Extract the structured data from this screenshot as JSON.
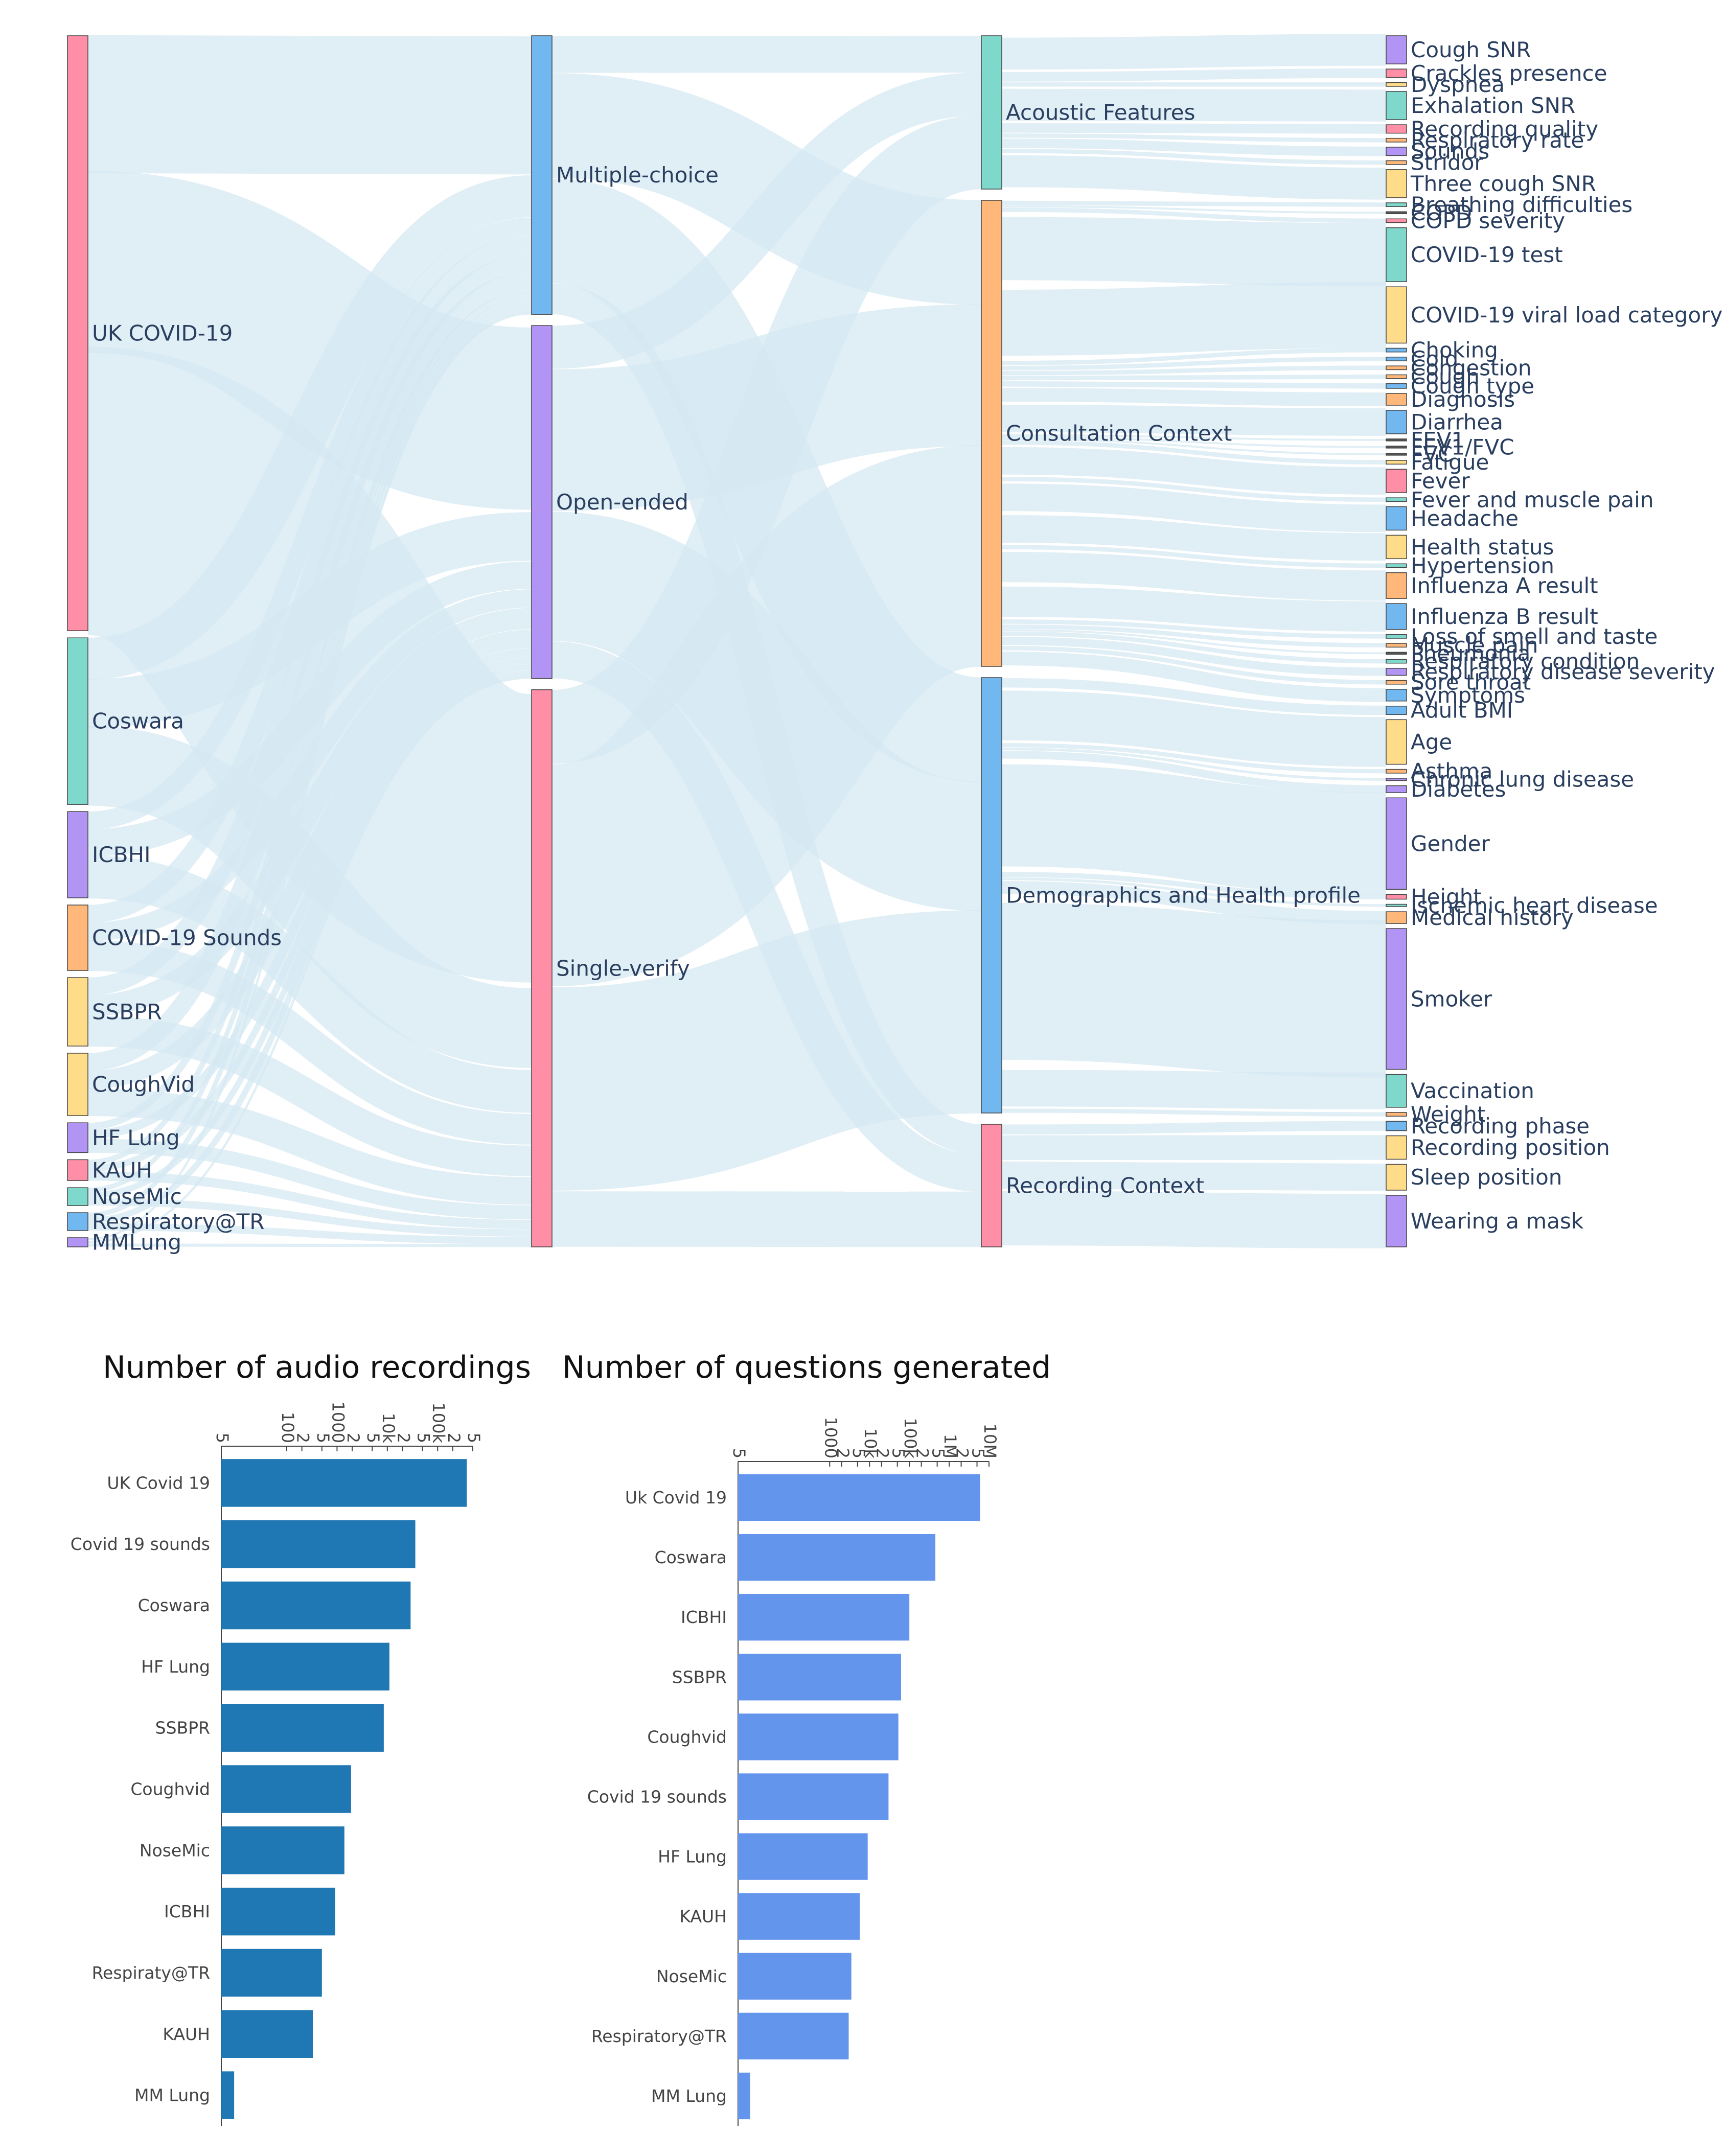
{
  "chart_data": [
    {
      "type": "sankey",
      "title": "",
      "columns": [
        {
          "name": "datasets",
          "nodes": [
            {
              "label": "UK COVID-19",
              "value": 1.0,
              "color": "#ff8fa6"
            },
            {
              "label": "Coswara",
              "value": 0.28,
              "color": "#7fd8cc"
            },
            {
              "label": "ICBHI",
              "value": 0.145,
              "color": "#b194f4"
            },
            {
              "label": "COVID-19 Sounds",
              "value": 0.11,
              "color": "#ffb87a"
            },
            {
              "label": "SSBPR",
              "value": 0.115,
              "color": "#ffdc8a"
            },
            {
              "label": "CoughVid",
              "value": 0.105,
              "color": "#ffdc8a"
            },
            {
              "label": "HF Lung",
              "value": 0.05,
              "color": "#b194f4"
            },
            {
              "label": "KAUH",
              "value": 0.035,
              "color": "#ff8fa6"
            },
            {
              "label": "NoseMic",
              "value": 0.03,
              "color": "#7fd8cc"
            },
            {
              "label": "Respiratory@TR",
              "value": 0.03,
              "color": "#72b8f0"
            },
            {
              "label": "MMLung",
              "value": 0.01,
              "color": "#b194f4"
            }
          ]
        },
        {
          "name": "question_types",
          "nodes": [
            {
              "label": "Multiple-choice",
              "value": 0.45,
              "color": "#72b8f0"
            },
            {
              "label": "Open-ended",
              "value": 0.57,
              "color": "#b194f4"
            },
            {
              "label": "Single-verify",
              "value": 0.9,
              "color": "#ff8fa6"
            }
          ]
        },
        {
          "name": "categories",
          "nodes": [
            {
              "label": "Acoustic Features",
              "value": 0.25,
              "color": "#7fd8cc"
            },
            {
              "label": "Consultation Context",
              "value": 0.76,
              "color": "#ffb87a"
            },
            {
              "label": "Demographics and Health profile",
              "value": 0.71,
              "color": "#72b8f0"
            },
            {
              "label": "Recording Context",
              "value": 0.2,
              "color": "#ff8fa6"
            }
          ]
        },
        {
          "name": "tasks",
          "nodes": [
            {
              "label": "Cough SNR",
              "value": 0.06,
              "color": "#b194f4"
            },
            {
              "label": "Crackles presence",
              "value": 0.018,
              "color": "#ff8fa6"
            },
            {
              "label": "Dyspnea",
              "value": 0.008,
              "color": "#ffdc8a"
            },
            {
              "label": "Exhalation SNR",
              "value": 0.06,
              "color": "#7fd8cc"
            },
            {
              "label": "Recording quality",
              "value": 0.018,
              "color": "#ff8fa6"
            },
            {
              "label": "Respiratory rate",
              "value": 0.008,
              "color": "#ffb87a"
            },
            {
              "label": "Sounds",
              "value": 0.018,
              "color": "#b194f4"
            },
            {
              "label": "Stridor",
              "value": 0.008,
              "color": "#ffb87a"
            },
            {
              "label": "Three cough SNR",
              "value": 0.06,
              "color": "#ffdc8a"
            },
            {
              "label": "Breathing difficulties",
              "value": 0.008,
              "color": "#7fd8cc"
            },
            {
              "label": "COPD",
              "value": 0.003,
              "color": "#555555"
            },
            {
              "label": "COPD severity",
              "value": 0.008,
              "color": "#ff8fa6"
            },
            {
              "label": "COVID-19 test",
              "value": 0.115,
              "color": "#7fd8cc"
            },
            {
              "label": "COVID-19 viral load category",
              "value": 0.12,
              "color": "#ffdc8a"
            },
            {
              "label": "Choking",
              "value": 0.008,
              "color": "#72b8f0"
            },
            {
              "label": "Cold",
              "value": 0.008,
              "color": "#72b8f0"
            },
            {
              "label": "Congestion",
              "value": 0.008,
              "color": "#ffb87a"
            },
            {
              "label": "Cough",
              "value": 0.008,
              "color": "#ffb87a"
            },
            {
              "label": "Cough type",
              "value": 0.01,
              "color": "#72b8f0"
            },
            {
              "label": "Diagnosis",
              "value": 0.025,
              "color": "#ffb87a"
            },
            {
              "label": "Diarrhea",
              "value": 0.05,
              "color": "#72b8f0"
            },
            {
              "label": "FEV1",
              "value": 0.003,
              "color": "#555555"
            },
            {
              "label": "FEV1/FVC",
              "value": 0.003,
              "color": "#555555"
            },
            {
              "label": "FVC",
              "value": 0.003,
              "color": "#555555"
            },
            {
              "label": "Fatigue",
              "value": 0.008,
              "color": "#ffdc8a"
            },
            {
              "label": "Fever",
              "value": 0.05,
              "color": "#ff8fa6"
            },
            {
              "label": "Fever and muscle pain",
              "value": 0.008,
              "color": "#7fd8cc"
            },
            {
              "label": "Headache",
              "value": 0.05,
              "color": "#72b8f0"
            },
            {
              "label": "Health status",
              "value": 0.05,
              "color": "#ffdc8a"
            },
            {
              "label": "Hypertension",
              "value": 0.008,
              "color": "#7fd8cc"
            },
            {
              "label": "Influenza A result",
              "value": 0.055,
              "color": "#ffb87a"
            },
            {
              "label": "Influenza B result",
              "value": 0.055,
              "color": "#72b8f0"
            },
            {
              "label": "Loss of smell and taste",
              "value": 0.008,
              "color": "#7fd8cc"
            },
            {
              "label": "Muscle pain",
              "value": 0.008,
              "color": "#ffb87a"
            },
            {
              "label": "Pneumonia",
              "value": 0.003,
              "color": "#555555"
            },
            {
              "label": "Respiratory condition",
              "value": 0.008,
              "color": "#7fd8cc"
            },
            {
              "label": "Respiratory disease severity",
              "value": 0.015,
              "color": "#b194f4"
            },
            {
              "label": "Sore throat",
              "value": 0.008,
              "color": "#ffb87a"
            },
            {
              "label": "Symptoms",
              "value": 0.025,
              "color": "#72b8f0"
            },
            {
              "label": "Adult BMI",
              "value": 0.018,
              "color": "#72b8f0"
            },
            {
              "label": "Age",
              "value": 0.095,
              "color": "#ffdc8a"
            },
            {
              "label": "Asthma",
              "value": 0.008,
              "color": "#ffb87a"
            },
            {
              "label": "Chronic lung disease",
              "value": 0.005,
              "color": "#b194f4"
            },
            {
              "label": "Diabetes",
              "value": 0.015,
              "color": "#b194f4"
            },
            {
              "label": "Gender",
              "value": 0.195,
              "color": "#b194f4"
            },
            {
              "label": "Height",
              "value": 0.01,
              "color": "#ff8fa6"
            },
            {
              "label": "Ischemic heart disease",
              "value": 0.005,
              "color": "#7fd8cc"
            },
            {
              "label": "Medical history",
              "value": 0.025,
              "color": "#ffb87a"
            },
            {
              "label": "Smoker",
              "value": 0.3,
              "color": "#b194f4"
            },
            {
              "label": "Vaccination",
              "value": 0.07,
              "color": "#7fd8cc"
            },
            {
              "label": "Weight",
              "value": 0.008,
              "color": "#ffb87a"
            },
            {
              "label": "Recording phase",
              "value": 0.02,
              "color": "#72b8f0"
            },
            {
              "label": "Recording position",
              "value": 0.05,
              "color": "#ffdc8a"
            },
            {
              "label": "Sleep position",
              "value": 0.055,
              "color": "#ffdc8a"
            },
            {
              "label": "Wearing a mask",
              "value": 0.11,
              "color": "#b194f4"
            }
          ]
        }
      ],
      "links_dataset_to_type": [
        [
          "UK COVID-19",
          "Multiple-choice",
          0.23
        ],
        [
          "UK COVID-19",
          "Open-ended",
          0.3
        ],
        [
          "UK COVID-19",
          "Single-verify",
          0.47
        ],
        [
          "Coswara",
          "Multiple-choice",
          0.07
        ],
        [
          "Coswara",
          "Open-ended",
          0.08
        ],
        [
          "Coswara",
          "Single-verify",
          0.13
        ],
        [
          "ICBHI",
          "Multiple-choice",
          0.03
        ],
        [
          "ICBHI",
          "Open-ended",
          0.045
        ],
        [
          "ICBHI",
          "Single-verify",
          0.07
        ],
        [
          "COVID-19 Sounds",
          "Multiple-choice",
          0.03
        ],
        [
          "COVID-19 Sounds",
          "Open-ended",
          0.03
        ],
        [
          "COVID-19 Sounds",
          "Single-verify",
          0.05
        ],
        [
          "SSBPR",
          "Multiple-choice",
          0.03
        ],
        [
          "SSBPR",
          "Open-ended",
          0.035
        ],
        [
          "SSBPR",
          "Single-verify",
          0.05
        ],
        [
          "CoughVid",
          "Multiple-choice",
          0.03
        ],
        [
          "CoughVid",
          "Open-ended",
          0.03
        ],
        [
          "CoughVid",
          "Single-verify",
          0.045
        ],
        [
          "HF Lung",
          "Multiple-choice",
          0.012
        ],
        [
          "HF Lung",
          "Open-ended",
          0.015
        ],
        [
          "HF Lung",
          "Single-verify",
          0.023
        ],
        [
          "KAUH",
          "Multiple-choice",
          0.009
        ],
        [
          "KAUH",
          "Open-ended",
          0.011
        ],
        [
          "KAUH",
          "Single-verify",
          0.015
        ],
        [
          "NoseMic",
          "Multiple-choice",
          0.008
        ],
        [
          "NoseMic",
          "Open-ended",
          0.01
        ],
        [
          "NoseMic",
          "Single-verify",
          0.012
        ],
        [
          "Respiratory@TR",
          "Multiple-choice",
          0.008
        ],
        [
          "Respiratory@TR",
          "Open-ended",
          0.01
        ],
        [
          "Respiratory@TR",
          "Single-verify",
          0.012
        ],
        [
          "MMLung",
          "Multiple-choice",
          0.003
        ],
        [
          "MMLung",
          "Open-ended",
          0.003
        ],
        [
          "MMLung",
          "Single-verify",
          0.004
        ]
      ],
      "links_type_to_category": [
        [
          "Multiple-choice",
          "Acoustic Features",
          0.06
        ],
        [
          "Multiple-choice",
          "Consultation Context",
          0.17
        ],
        [
          "Multiple-choice",
          "Demographics and Health profile",
          0.17
        ],
        [
          "Multiple-choice",
          "Recording Context",
          0.05
        ],
        [
          "Open-ended",
          "Acoustic Features",
          0.07
        ],
        [
          "Open-ended",
          "Consultation Context",
          0.23
        ],
        [
          "Open-ended",
          "Demographics and Health profile",
          0.21
        ],
        [
          "Open-ended",
          "Recording Context",
          0.06
        ],
        [
          "Single-verify",
          "Acoustic Features",
          0.12
        ],
        [
          "Single-verify",
          "Consultation Context",
          0.36
        ],
        [
          "Single-verify",
          "Demographics and Health profile",
          0.33
        ],
        [
          "Single-verify",
          "Recording Context",
          0.09
        ]
      ],
      "task_groups": {
        "Acoustic Features": [
          "Cough SNR",
          "Crackles presence",
          "Dyspnea",
          "Exhalation SNR",
          "Recording quality",
          "Respiratory rate",
          "Sounds",
          "Stridor",
          "Three cough SNR"
        ],
        "Consultation Context": [
          "Breathing difficulties",
          "COPD",
          "COPD severity",
          "COVID-19 test",
          "COVID-19 viral load category",
          "Choking",
          "Cold",
          "Congestion",
          "Cough",
          "Cough type",
          "Diagnosis",
          "Diarrhea",
          "FEV1",
          "FEV1/FVC",
          "FVC",
          "Fatigue",
          "Fever",
          "Fever and muscle pain",
          "Headache",
          "Health status",
          "Hypertension",
          "Influenza A result",
          "Influenza B result",
          "Loss of smell and taste",
          "Muscle pain",
          "Pneumonia",
          "Respiratory condition",
          "Respiratory disease severity",
          "Sore throat",
          "Symptoms"
        ],
        "Demographics and Health profile": [
          "Adult BMI",
          "Age",
          "Asthma",
          "Chronic lung disease",
          "Diabetes",
          "Gender",
          "Height",
          "Ischemic heart disease",
          "Medical history",
          "Smoker",
          "Vaccination",
          "Weight"
        ],
        "Recording Context": [
          "Recording phase",
          "Recording position",
          "Sleep position",
          "Wearing a mask"
        ]
      },
      "link_color": "#d5e8f1"
    },
    {
      "type": "bar",
      "orientation": "horizontal",
      "title": "Number of audio recordings",
      "xscale": "log",
      "xlim": [
        5,
        500000
      ],
      "tick_labels": [
        "5",
        "100",
        "2",
        "5",
        "1000",
        "2",
        "5",
        "10k",
        "2",
        "5",
        "100k",
        "2",
        "5"
      ],
      "tick_values": [
        5,
        100,
        200,
        500,
        1000,
        2000,
        5000,
        10000,
        20000,
        50000,
        100000,
        200000,
        500000
      ],
      "categories": [
        "UK Covid 19",
        "Covid 19 sounds",
        "Coswara",
        "HF Lung",
        "SSBPR",
        "Coughvid",
        "NoseMic",
        "ICBHI",
        "Respiraty@TR",
        "KAUH",
        "MM Lung"
      ],
      "values": [
        380000,
        36000,
        29000,
        11000,
        8500,
        1900,
        1400,
        920,
        500,
        330,
        9
      ],
      "color": "#1f77b4"
    },
    {
      "type": "bar",
      "orientation": "horizontal",
      "title": "Number of questions generated",
      "xscale": "log",
      "xlim": [
        5,
        10000000
      ],
      "tick_labels": [
        "5",
        "1000",
        "2",
        "5",
        "10k",
        "2",
        "5",
        "100k",
        "2",
        "5",
        "1M",
        "2",
        "5",
        "10M"
      ],
      "tick_values": [
        5,
        1000,
        2000,
        5000,
        10000,
        20000,
        50000,
        100000,
        200000,
        500000,
        1000000,
        2000000,
        5000000,
        10000000
      ],
      "categories": [
        "Uk Covid 19",
        "Coswara",
        "ICBHI",
        "SSBPR",
        "Coughvid",
        "Covid 19 sounds",
        "HF Lung",
        "KAUH",
        "NoseMic",
        "Respiratory@TR",
        "MM Lung"
      ],
      "values": [
        6000000,
        450000,
        100000,
        62000,
        53000,
        30000,
        9000,
        5700,
        3500,
        3000,
        10
      ],
      "color": "#6495ed"
    }
  ]
}
